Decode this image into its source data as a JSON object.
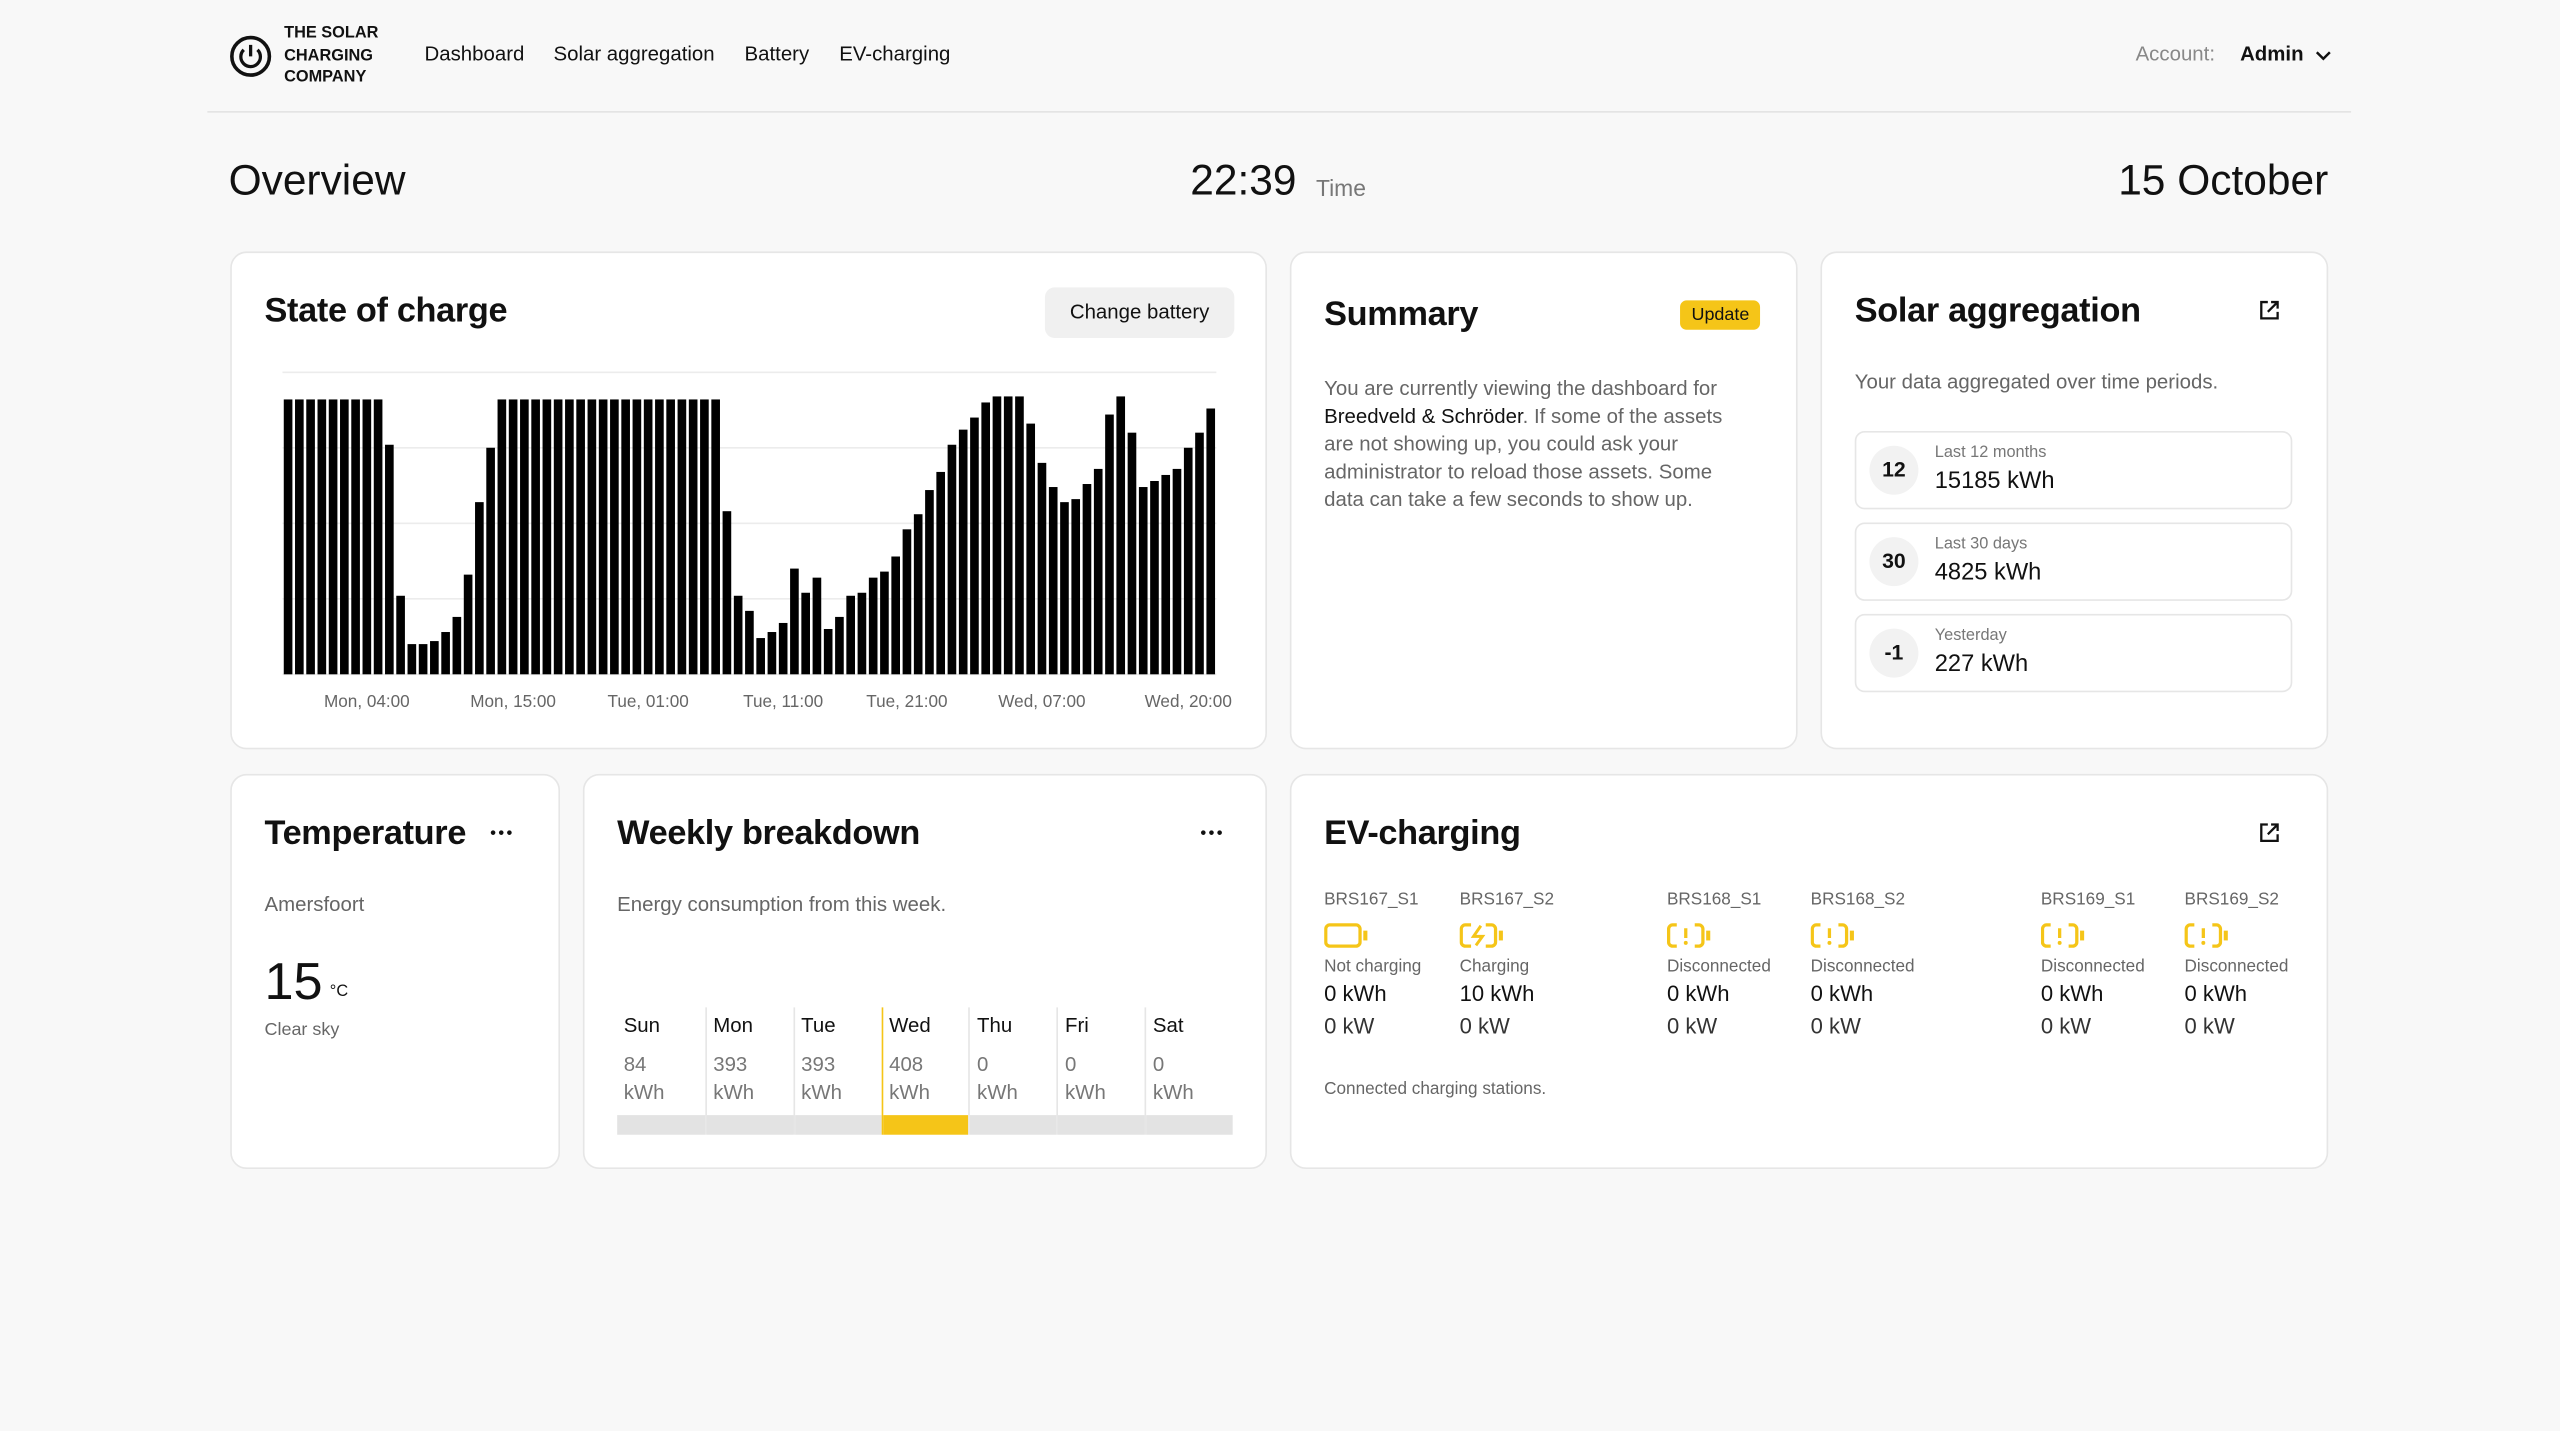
{
  "nav": {
    "brand": "THE SOLAR CHARGING COMPANY",
    "links": [
      "Dashboard",
      "Solar aggregation",
      "Battery",
      "EV-charging"
    ],
    "account_label": "Account:",
    "account": "Admin"
  },
  "header": {
    "title": "Overview",
    "time": "22:39",
    "time_label": "Time",
    "date": "15 October"
  },
  "chart_data": {
    "type": "bar",
    "title": "State of charge",
    "button": "Change battery",
    "categories": [
      null,
      null,
      null,
      null,
      null,
      null,
      null,
      "Mon, 04:00",
      null,
      null,
      null,
      null,
      null,
      null,
      null,
      null,
      null,
      null,
      null,
      null,
      "Mon, 15:00",
      null,
      null,
      null,
      null,
      null,
      null,
      null,
      null,
      null,
      null,
      null,
      "Tue, 01:00",
      null,
      null,
      null,
      null,
      null,
      null,
      null,
      null,
      null,
      null,
      null,
      "Tue, 11:00",
      null,
      null,
      null,
      null,
      null,
      null,
      null,
      null,
      null,
      null,
      "Tue, 21:00",
      null,
      null,
      null,
      null,
      null,
      null,
      null,
      null,
      null,
      null,
      null,
      "Wed, 07:00",
      null,
      null,
      null,
      null,
      null,
      null,
      null,
      null,
      null,
      null,
      null,
      null,
      "Wed, 20:00",
      null,
      null
    ],
    "values": [
      91,
      91,
      91,
      91,
      91,
      91,
      91,
      91,
      91,
      76,
      26,
      10,
      10,
      11,
      14,
      19,
      33,
      57,
      75,
      91,
      91,
      91,
      91,
      91,
      91,
      91,
      91,
      91,
      91,
      91,
      91,
      91,
      91,
      91,
      91,
      91,
      91,
      91,
      91,
      54,
      26,
      21,
      12,
      14,
      17,
      35,
      27,
      32,
      15,
      19,
      26,
      27,
      32,
      34,
      39,
      48,
      53,
      61,
      67,
      76,
      81,
      85,
      90,
      92,
      92,
      92,
      83,
      70,
      62,
      57,
      58,
      63,
      68,
      86,
      92,
      80,
      62,
      64,
      66,
      68,
      75,
      80,
      88
    ],
    "color": "#000000",
    "ylim": [
      0,
      100
    ],
    "yticks": [
      0,
      25,
      50,
      75,
      100
    ],
    "grid": true
  },
  "summary": {
    "title": "Summary",
    "badge": "Update",
    "text_before": "You are currently viewing the dashboard for ",
    "highlight": "Breedveld & Schröder",
    "text_after": ". If some of the assets are not showing up, you could ask your administrator to reload those assets. Some data can take a few seconds to show up."
  },
  "solar": {
    "title": "Solar aggregation",
    "subtitle": "Your data aggregated over time periods.",
    "items": [
      {
        "badge": 12,
        "label": "Last 12 months",
        "value": "15185 kWh"
      },
      {
        "badge": 30,
        "label": "Last 30 days",
        "value": "4825 kWh"
      },
      {
        "badge": -1,
        "label": "Yesterday",
        "value": "227 kWh"
      }
    ]
  },
  "temperature": {
    "title": "Temperature",
    "location": "Amersfoort",
    "value": 15,
    "unit": "°C",
    "condition": "Clear sky"
  },
  "weekly": {
    "title": "Weekly breakdown",
    "subtitle": "Energy consumption from this week.",
    "days": [
      {
        "day": "Sun",
        "value": 84,
        "unit": "kWh",
        "color": "#e3e3e3"
      },
      {
        "day": "Mon",
        "value": 393,
        "unit": "kWh",
        "color": "#e3e3e3"
      },
      {
        "day": "Tue",
        "value": 393,
        "unit": "kWh",
        "color": "#e3e3e3"
      },
      {
        "day": "Wed",
        "value": 408,
        "unit": "kWh",
        "color": "#f5c518"
      },
      {
        "day": "Thu",
        "value": 0,
        "unit": "kWh",
        "color": "#e3e3e3"
      },
      {
        "day": "Fri",
        "value": 0,
        "unit": "kWh",
        "color": "#e3e3e3"
      },
      {
        "day": "Sat",
        "value": 0,
        "unit": "kWh",
        "color": "#e3e3e3"
      }
    ]
  },
  "ev": {
    "title": "EV-charging",
    "stations": [
      {
        "id": "BRS167_S1",
        "status": "Not charging",
        "energy": "0 kWh",
        "power": "0 kW"
      },
      {
        "id": "BRS167_S2",
        "status": "Charging",
        "energy": "10 kWh",
        "power": "0 kW"
      },
      {
        "id": "BRS168_S1",
        "status": "Disconnected",
        "energy": "0 kWh",
        "power": "0 kW"
      },
      {
        "id": "BRS168_S2",
        "status": "Disconnected",
        "energy": "0 kWh",
        "power": "0 kW"
      },
      {
        "id": "BRS169_S1",
        "status": "Disconnected",
        "energy": "0 kWh",
        "power": "0 kW"
      },
      {
        "id": "BRS169_S2",
        "status": "Disconnected",
        "energy": "0 kWh",
        "power": "0 kW"
      }
    ],
    "footer": "Connected charging stations."
  }
}
